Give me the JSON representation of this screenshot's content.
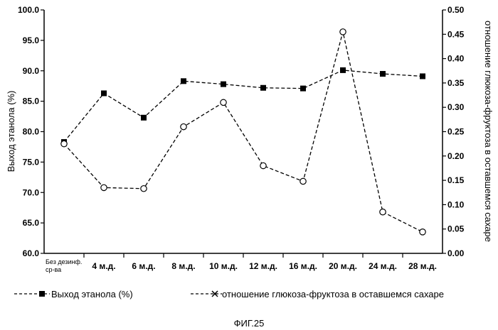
{
  "chart_data": {
    "type": "line",
    "categories": [
      "Без дезинф. ср-ва",
      "4 м.д.",
      "6 м.д.",
      "8 м.д.",
      "10 м.д.",
      "12 м.д.",
      "16 м.д.",
      "20 м.д.",
      "24 м.д.",
      "28 м.д."
    ],
    "series": [
      {
        "name": "Выход этанола (%)",
        "axis": "left",
        "marker": "square",
        "values": [
          78.3,
          86.3,
          82.3,
          88.3,
          87.8,
          87.2,
          87.1,
          90.1,
          89.5,
          89.1
        ]
      },
      {
        "name": "отношение глюкоза-фруктоза в оставшемся сахаре",
        "axis": "right",
        "marker": "circle",
        "values": [
          0.225,
          0.135,
          0.133,
          0.26,
          0.31,
          0.18,
          0.148,
          0.455,
          0.085,
          0.044
        ]
      }
    ],
    "ylabel_left": "Выход этанола (%)",
    "ylabel_right": "отношение глюкоза-фруктоза в оставшемся сахаре",
    "ylim_left": [
      60.0,
      100.0
    ],
    "yticks_left": [
      "100.0",
      "95.0",
      "90.0",
      "85.0",
      "80.0",
      "75.0",
      "70.0",
      "65.0",
      "60.0"
    ],
    "ylim_right": [
      0.0,
      0.5
    ],
    "yticks_right": [
      "0.50",
      "0.45",
      "0.40",
      "0.35",
      "0.30",
      "0.25",
      "0.20",
      "0.15",
      "0.10",
      "0.05",
      "0.00"
    ],
    "grid": false,
    "legend": [
      {
        "label": "Выход этанола (%)",
        "marker": "square"
      },
      {
        "label": "отношение глюкоза-фруктоза в оставшемся сахаре",
        "marker": "cross"
      }
    ],
    "legend_placement": "bottom",
    "caption": "ФИГ.25"
  }
}
